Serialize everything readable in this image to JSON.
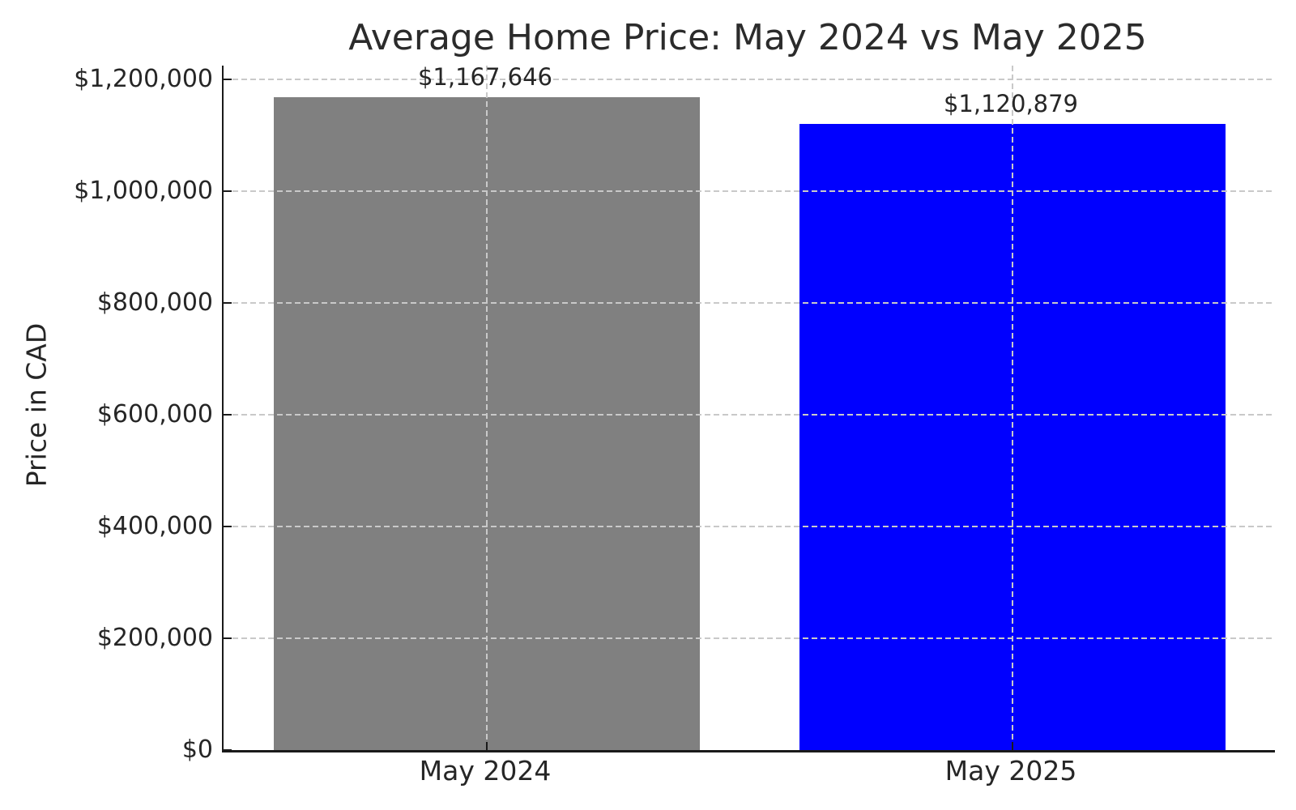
{
  "chart_data": {
    "type": "bar",
    "title": "Average Home Price: May 2024 vs May 2025",
    "ylabel": "Price in CAD",
    "xlabel": "",
    "categories": [
      "May 2024",
      "May 2025"
    ],
    "values": [
      1167646,
      1120879
    ],
    "value_labels": [
      "$1,167,646",
      "$1,120,879"
    ],
    "bar_colors": [
      "#808080",
      "#0000ff"
    ],
    "ylim": [
      0,
      1200000
    ],
    "ytick_values": [
      0,
      200000,
      400000,
      600000,
      800000,
      1000000,
      1200000
    ],
    "ytick_labels": [
      "$0",
      "$200,000",
      "$400,000",
      "$600,000",
      "$800,000",
      "$1,000,000",
      "$1,200,000"
    ],
    "grid": true,
    "grid_style": "dashed",
    "grid_color": "#c9c9c9",
    "axis_color": "#1a1a1a",
    "text_color": "#262626",
    "background_color": "#ffffff",
    "legend": "none"
  }
}
